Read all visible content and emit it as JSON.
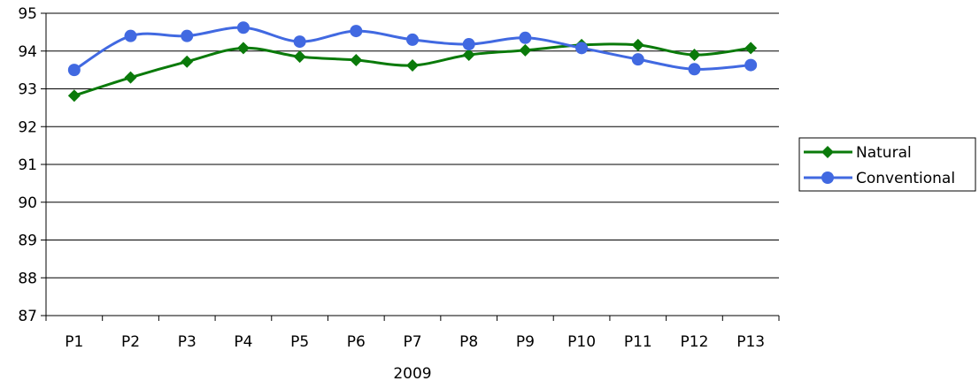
{
  "chart_data": {
    "type": "line",
    "title": "",
    "xlabel": "2009",
    "ylabel": "",
    "categories": [
      "P1",
      "P2",
      "P3",
      "P4",
      "P5",
      "P6",
      "P7",
      "P8",
      "P9",
      "P10",
      "P11",
      "P12",
      "P13"
    ],
    "ylim": [
      87,
      95
    ],
    "yticks": [
      "87",
      "88",
      "89",
      "90",
      "91",
      "92",
      "93",
      "94",
      "95"
    ],
    "grid": true,
    "smooth": true,
    "legend_position": "right",
    "series": [
      {
        "name": "Natural",
        "color": "#0a7a0a",
        "marker": "diamond",
        "values": [
          92.82,
          93.3,
          93.72,
          94.08,
          93.85,
          93.76,
          93.62,
          93.9,
          94.02,
          94.16,
          94.16,
          93.9,
          94.08
        ]
      },
      {
        "name": "Conventional",
        "color": "#4169e1",
        "marker": "circle",
        "values": [
          93.5,
          94.4,
          94.4,
          94.62,
          94.25,
          94.53,
          94.3,
          94.18,
          94.35,
          94.08,
          93.78,
          93.52,
          93.63
        ]
      }
    ]
  }
}
